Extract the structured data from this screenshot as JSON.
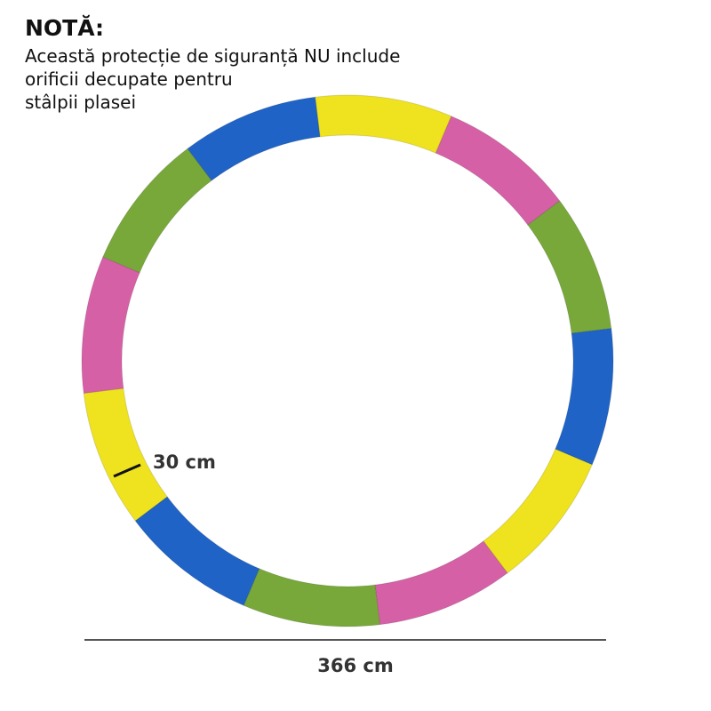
{
  "note": {
    "title": "NOTĂ:",
    "lines": [
      "Această protecție de siguranță NU include",
      "orificii decupate pentru",
      "stâlpii plasei"
    ]
  },
  "dimensions": {
    "width_label": "30 cm",
    "diameter_label": "366 cm"
  }
}
